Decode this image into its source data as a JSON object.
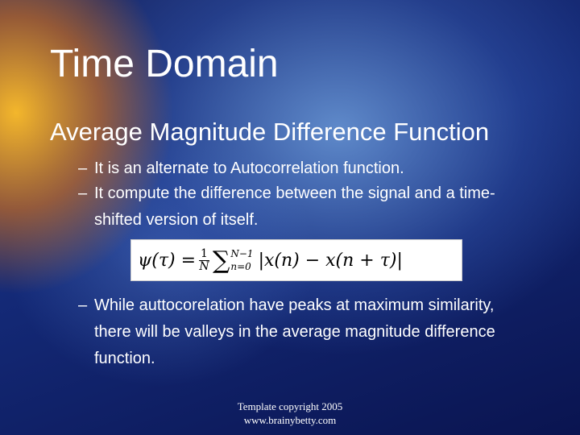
{
  "slide": {
    "title": "Time Domain",
    "heading": "Average Magnitude Difference Function",
    "bullet_marker": "–",
    "bullets": [
      "It is an alternate to Autocorrelation function.",
      "It compute the difference between the signal and a time-shifted version of itself.",
      "While auttocorelation have peaks at maximum similarity, there will be valleys in the average magnitude difference function."
    ],
    "formula": {
      "lhs": "ψ(τ) =",
      "numerator": "1",
      "denominator": "N",
      "sum": "∑",
      "upper": "N−1",
      "lower": "n=0",
      "body": "|x(n) − x(n + τ)|"
    },
    "footer": [
      "Template copyright 2005",
      "www.brainybetty.com"
    ]
  }
}
